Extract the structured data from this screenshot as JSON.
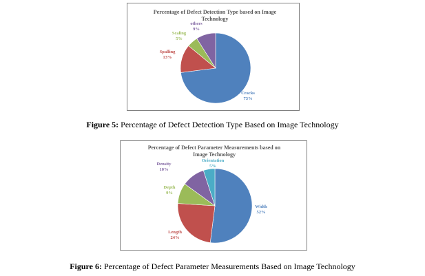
{
  "chart_data": [
    {
      "type": "pie",
      "title": "Percentage of Defect Detection Type based on Image Technology",
      "categories": [
        "Cracks",
        "Spalling",
        "Scaling",
        "others"
      ],
      "values": [
        73,
        13,
        5,
        9
      ],
      "value_labels": [
        "73%",
        "13%",
        "5%",
        "9%"
      ],
      "colors": [
        "#4f81bd",
        "#c0504d",
        "#9bbb59",
        "#8064a2"
      ],
      "legend": "none (labels placed beside slices)"
    },
    {
      "type": "pie",
      "title": "Percentage of Defect Parameter Measurements based on Image Technology",
      "categories": [
        "Width",
        "Length",
        "Depth",
        "Density",
        "Orientation"
      ],
      "values": [
        52,
        24,
        9,
        10,
        5
      ],
      "value_labels": [
        "52%",
        "24%",
        "9%",
        "10%",
        "5%"
      ],
      "colors": [
        "#4f81bd",
        "#c0504d",
        "#9bbb59",
        "#8064a2",
        "#4bacc6"
      ],
      "legend": "none (labels placed beside slices)"
    }
  ],
  "captions": [
    {
      "label": "Figure 5:",
      "text": " Percentage of Defect Detection Type Based on Image Technology"
    },
    {
      "label": "Figure 6:",
      "text": " Percentage of Defect Parameter Measurements Based on Image Technology"
    }
  ]
}
